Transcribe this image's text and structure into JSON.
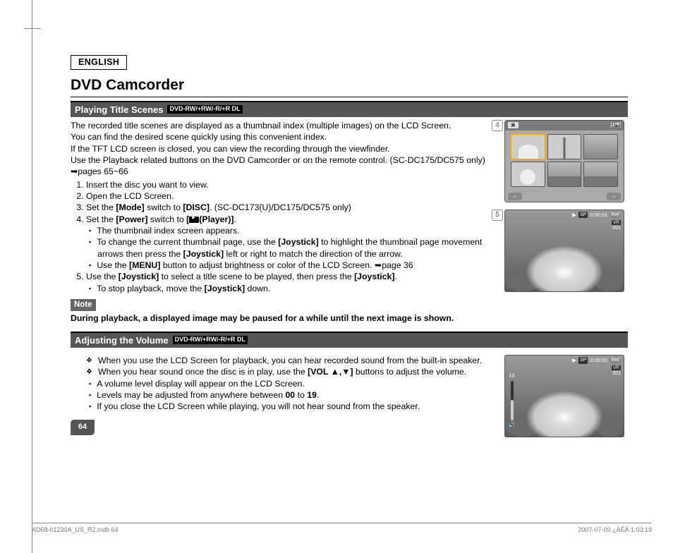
{
  "header": {
    "language": "ENGLISH",
    "title": "DVD Camcorder"
  },
  "section1": {
    "title": "Playing Title Scenes",
    "disc_label": "DVD-RW/+RW/-R/+R DL",
    "intro": [
      "The recorded title scenes are displayed as a thumbnail index (multiple images) on the LCD Screen.",
      "You can find the desired scene quickly using this convenient index.",
      "If the TFT LCD screen is closed, you can view the recording through the viewfinder.",
      "Use the Playback related buttons on the DVD Camcorder or on the remote control. (SC-DC175/DC575 only) ➥pages 65~66"
    ],
    "steps": [
      {
        "text": "Insert the disc you want to view."
      },
      {
        "text": "Open the LCD Screen."
      },
      {
        "parts": [
          "Set the ",
          "[Mode]",
          " switch to ",
          "[DISC]",
          ". (SC-DC173(U)/DC175/DC575 only)"
        ]
      },
      {
        "parts": [
          "Set the ",
          "[Power]",
          " switch to ",
          "[",
          "(Player)]",
          "."
        ],
        "sub": [
          "The thumbnail index screen appears.",
          "To change the current thumbnail page, use the <b>[Joystick]</b> to highlight the thumbnail page movement arrows then press the <b>[Joystick]</b> left or right to match the direction of the arrow.",
          "Use the <b>[MENU]</b> button to adjust brightness or color of the LCD Screen. ➥page 36"
        ]
      },
      {
        "parts": [
          "Use the ",
          "[Joystick]",
          " to select a title scene to be played, then press the ",
          "[Joystick]",
          "."
        ],
        "sub": [
          "To stop playback, move the <b>[Joystick]</b> down."
        ]
      }
    ],
    "note_label": "Note",
    "note_text": "During playback, a displayed image may be paused for a while until the next image is shown."
  },
  "section2": {
    "title": "Adjusting the Volume",
    "disc_label": "DVD-RW/+RW/-R/+R DL",
    "bullets": [
      "When you use the LCD Screen for playback, you can hear recorded sound from the built-in speaker.",
      "When you hear sound once the disc is in play, use the <b>[VOL ▲,▼]</b> buttons to adjust the volume."
    ],
    "sub_bullets": [
      "A volume level display will appear on the LCD Screen.",
      "Levels may be adjusted from anywhere between <b>00</b> to <b>19</b>.",
      "If you close the LCD Screen while playing, you will not hear sound from the speaker."
    ]
  },
  "figures": {
    "fig4": {
      "number": "4",
      "page_index": "[1/9]",
      "arrow_left": "←",
      "arrow_right": "→"
    },
    "fig5": {
      "number": "5",
      "play_icon": "▶",
      "quality": "SP",
      "time": "0:00:01",
      "disc_badge": "RW",
      "mode_badge": "VR",
      "count": "001"
    },
    "fig_vol": {
      "play_icon": "▶",
      "quality": "SP",
      "time": "0:00:01",
      "disc_badge": "RW",
      "mode_badge": "VR",
      "count": "001",
      "volume": "10",
      "vol_icon": "🔊"
    }
  },
  "page_number": "64",
  "footer": {
    "left": "AD68-01230A_US_R2.indb   64",
    "right": "2007-07-09   ¿ÀÈÄ 1:03:19"
  }
}
